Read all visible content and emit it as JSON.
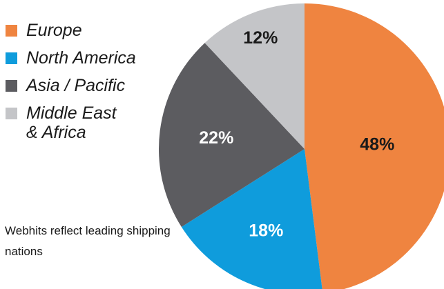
{
  "chart_data": {
    "type": "pie",
    "categories": [
      "Europe",
      "North America",
      "Asia / Pacific",
      "Middle East\n& Africa"
    ],
    "values": [
      48,
      18,
      22,
      12
    ],
    "data_labels": [
      "48%",
      "18%",
      "22%",
      "12%"
    ],
    "colors": [
      "#ef8440",
      "#0f9cdc",
      "#5c5c60",
      "#c4c5c8"
    ],
    "label_colors": [
      "#1a1a1a",
      "#ffffff",
      "#ffffff",
      "#1a1a1a"
    ],
    "start_angle_deg": 0,
    "direction": "clockwise",
    "legend_position": "top-left"
  },
  "note": "Webhits reflect leading shipping nations"
}
